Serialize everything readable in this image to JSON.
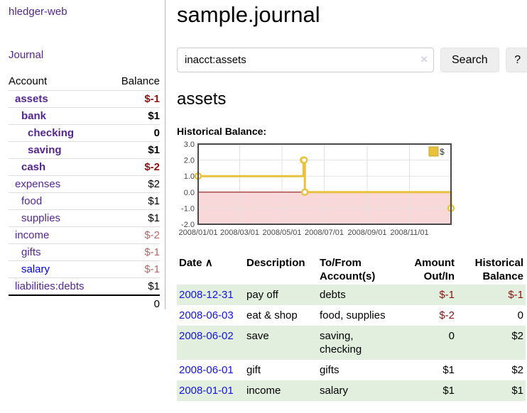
{
  "app": {
    "brand": "hledger-web"
  },
  "nav": {
    "journal": "Journal"
  },
  "sidebar": {
    "header": {
      "account": "Account",
      "balance": "Balance"
    },
    "rows": [
      {
        "name": "assets",
        "balance": "$-1",
        "row_class": "b",
        "name_class": "lvl1",
        "balance_class": "neg-strong"
      },
      {
        "name": "bank",
        "balance": "$1",
        "row_class": "b",
        "name_class": "lvl2",
        "balance_class": ""
      },
      {
        "name": "checking",
        "balance": "0",
        "row_class": "b",
        "name_class": "lvl3",
        "balance_class": ""
      },
      {
        "name": "saving",
        "balance": "$1",
        "row_class": "b",
        "name_class": "lvl3",
        "balance_class": ""
      },
      {
        "name": "cash",
        "balance": "$-2",
        "row_class": "b",
        "name_class": "lvl2",
        "balance_class": "neg-strong"
      },
      {
        "name": "expenses",
        "balance": "$2",
        "row_class": "",
        "name_class": "lvl1",
        "balance_class": ""
      },
      {
        "name": "food",
        "balance": "$1",
        "row_class": "",
        "name_class": "lvl2",
        "balance_class": ""
      },
      {
        "name": "supplies",
        "balance": "$1",
        "row_class": "",
        "name_class": "lvl2",
        "balance_class": ""
      },
      {
        "name": "income",
        "balance": "$-2",
        "row_class": "",
        "name_class": "lvl1",
        "balance_class": "neg-soft"
      },
      {
        "name": "gifts",
        "balance": "$-1",
        "row_class": "",
        "name_class": "lvl2",
        "balance_class": "neg-soft"
      },
      {
        "name": "salary",
        "balance": "$-1",
        "row_class": "",
        "name_class": "lvl2 blue",
        "balance_class": "neg-soft"
      },
      {
        "name": "liabilities:debts",
        "balance": "$1",
        "row_class": "",
        "name_class": "lvl1",
        "balance_class": ""
      }
    ],
    "total": "0"
  },
  "main": {
    "title": "sample.journal",
    "search": {
      "value": "inacct:assets",
      "clear_icon": "×",
      "search_button": "Search",
      "help_button": "?"
    },
    "account_title": "assets",
    "chart_heading": "Historical Balance:"
  },
  "chart_data": {
    "type": "line",
    "variant": "step",
    "title": "Historical Balance",
    "legend": [
      {
        "label": "$",
        "color": "#e8c23f"
      }
    ],
    "legend_position": "top-right",
    "grid": true,
    "x_range": [
      "2008-01-01",
      "2008-12-31"
    ],
    "y_range": [
      -2,
      3
    ],
    "y_ticks": [
      {
        "value": 3,
        "label": "3.0"
      },
      {
        "value": 2,
        "label": "2.0"
      },
      {
        "value": 1,
        "label": "1.0"
      },
      {
        "value": 0,
        "label": "0.0"
      },
      {
        "value": -1,
        "label": "-1.0"
      },
      {
        "value": -2,
        "label": "-2.0"
      }
    ],
    "x_ticks": [
      {
        "date": "2008-01-01",
        "label": "2008/01/01"
      },
      {
        "date": "2008-03-01",
        "label": "2008/03/01"
      },
      {
        "date": "2008-05-01",
        "label": "2008/05/01"
      },
      {
        "date": "2008-07-01",
        "label": "2008/07/01"
      },
      {
        "date": "2008-09-01",
        "label": "2008/09/01"
      },
      {
        "date": "2008-11-01",
        "label": "2008/11/01"
      }
    ],
    "series": [
      {
        "name": "$",
        "color": "#e8c23f",
        "marker_fill": "#ffffff",
        "points": [
          [
            "2008-01-01",
            1
          ],
          [
            "2008-06-01",
            2
          ],
          [
            "2008-06-02",
            2
          ],
          [
            "2008-06-03",
            0
          ],
          [
            "2008-12-31",
            -1
          ]
        ]
      }
    ],
    "negative_region": {
      "from": 0,
      "to": -2,
      "color": "#f8d8d8"
    },
    "zero_line_color": "#8b0000",
    "grid_color": "#e2e2e2",
    "frame_color": "#4a4a4a"
  },
  "register": {
    "headers": {
      "date": "Date",
      "description": "Description",
      "accounts": "To/From Account(s)",
      "amount": "Amount Out/In",
      "balance": "Historical Balance"
    },
    "sort_icon": "∧",
    "rows": [
      {
        "date": "2008-12-31",
        "description": "pay off",
        "accounts": "debts",
        "amount": "$-1",
        "balance": "$-1",
        "row_class": "alt",
        "amount_class": "neg",
        "balance_class": "neg"
      },
      {
        "date": "2008-06-03",
        "description": "eat & shop",
        "accounts": "food, supplies",
        "amount": "$-2",
        "balance": "0",
        "row_class": "",
        "amount_class": "neg",
        "balance_class": ""
      },
      {
        "date": "2008-06-02",
        "description": "save",
        "accounts": "saving, checking",
        "amount": "0",
        "balance": "$2",
        "row_class": "alt",
        "amount_class": "",
        "balance_class": ""
      },
      {
        "date": "2008-06-01",
        "description": "gift",
        "accounts": "gifts",
        "amount": "$1",
        "balance": "$2",
        "row_class": "",
        "amount_class": "",
        "balance_class": ""
      },
      {
        "date": "2008-01-01",
        "description": "income",
        "accounts": "salary",
        "amount": "$1",
        "balance": "$1",
        "row_class": "alt",
        "amount_class": "",
        "balance_class": ""
      }
    ]
  }
}
